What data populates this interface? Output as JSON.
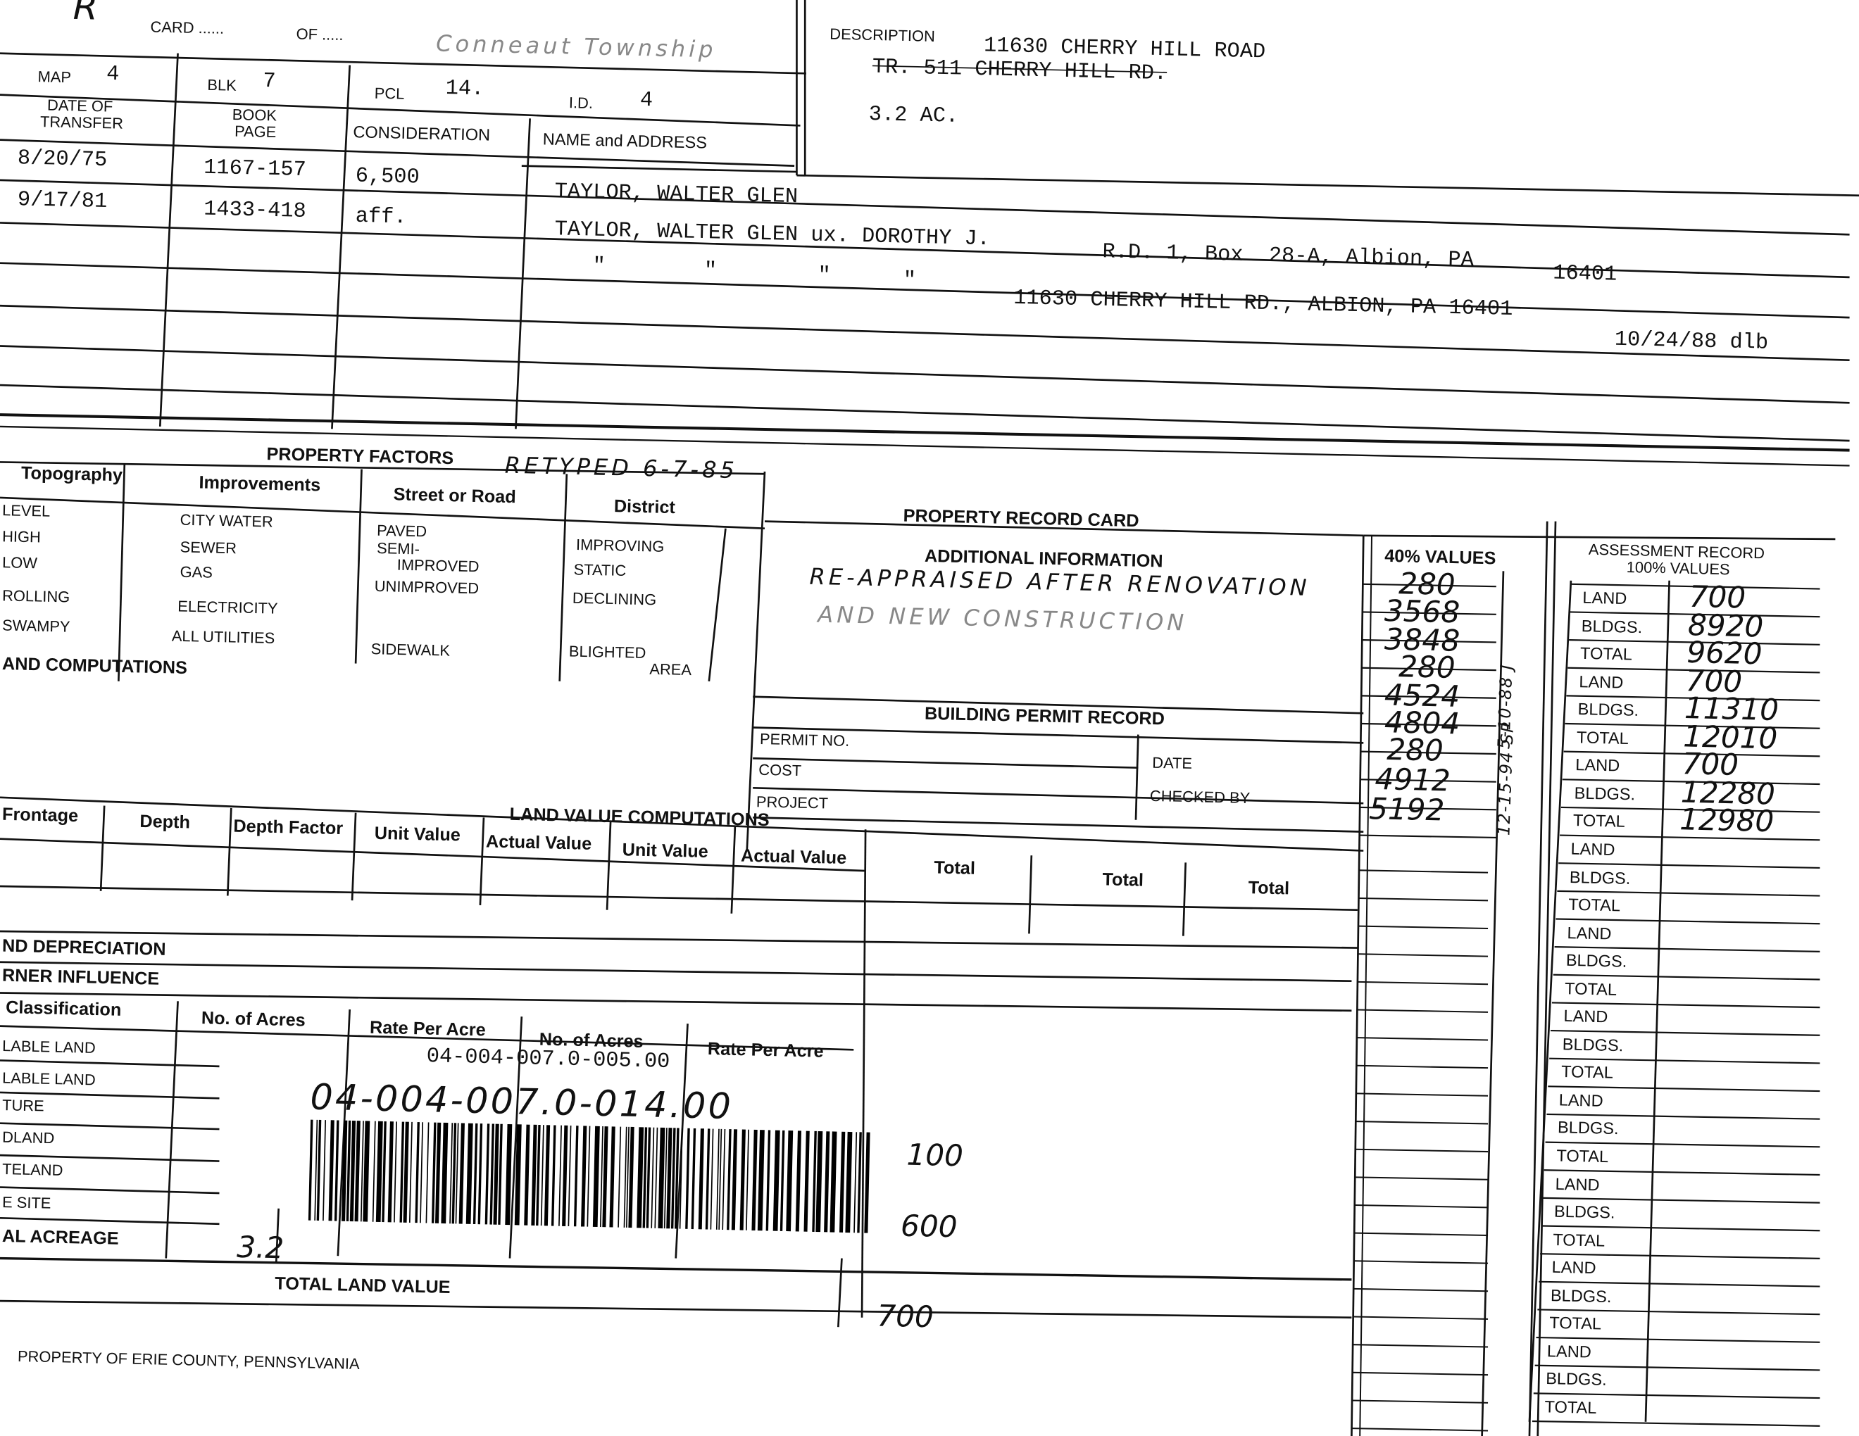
{
  "header": {
    "corner_mark": "R",
    "card_label": "CARD ......",
    "of_label": "OF .....",
    "township": "Conneaut Township",
    "map_label": "MAP",
    "map_value": "4",
    "blk_label": "BLK",
    "blk_value": "7",
    "pcl_label": "PCL",
    "pcl_value": "14.",
    "id_label": "I.D.",
    "id_value": "4"
  },
  "description": {
    "label": "DESCRIPTION",
    "line1": "11630 CHERRY HILL ROAD",
    "line2_struck": "TR. 511 CHERRY HILL RD.",
    "acreage": "3.2 AC."
  },
  "transfers": {
    "headers": {
      "date": [
        "DATE OF",
        "TRANSFER"
      ],
      "book": [
        "BOOK",
        "PAGE"
      ],
      "consideration": "CONSIDERATION",
      "name": "NAME and ADDRESS"
    },
    "rows": [
      {
        "date": "8/20/75",
        "book_page": "1167-157",
        "consideration": "6,500",
        "name": "TAYLOR, WALTER GLEN"
      },
      {
        "date": "9/17/81",
        "book_page": "1433-418",
        "consideration": "aff.",
        "name": "TAYLOR, WALTER GLEN ux. DOROTHY J."
      }
    ],
    "address1": "R.D. 1, Box  28-A, Albion, PA",
    "zip1": "16401",
    "ditto": "\"",
    "address2": "11630 CHERRY HILL RD., ALBION, PA 16401",
    "address2_note": "10/24/88 dlb"
  },
  "property_factors": {
    "title": "PROPERTY FACTORS",
    "retyped_note": "RETYPED 6-7-85",
    "topography": {
      "header": "Topography",
      "items": [
        "LEVEL",
        "HIGH",
        "LOW",
        "ROLLING",
        "SWAMPY"
      ]
    },
    "improvements": {
      "header": "Improvements",
      "items": [
        "CITY WATER",
        "SEWER",
        "GAS",
        "ELECTRICITY",
        "ALL UTILITIES"
      ]
    },
    "street": {
      "header": "Street or Road",
      "items": [
        "PAVED",
        "SEMI-",
        "IMPROVED",
        "UNIMPROVED",
        "SIDEWALK"
      ]
    },
    "district": {
      "header": "District",
      "items": [
        "IMPROVING",
        "STATIC",
        "DECLINING",
        "BLIGHTED",
        "AREA"
      ]
    }
  },
  "land_computations_title": "AND COMPUTATIONS",
  "record_card": {
    "title": "PROPERTY RECORD CARD",
    "additional_info_label": "ADDITIONAL INFORMATION",
    "additional_info_line1": "RE-APPRAISED AFTER RENOVATION",
    "additional_info_line2": "AND NEW CONSTRUCTION",
    "permit": {
      "title": "BUILDING PERMIT RECORD",
      "permit_no": "PERMIT NO.",
      "cost": "COST",
      "project": "PROJECT",
      "date": "DATE",
      "checked_by": "CHECKED BY"
    }
  },
  "values_40": {
    "header": "40% VALUES",
    "values": [
      "280",
      "3568",
      "3848",
      "280",
      "4524",
      "4804",
      "280",
      "4912",
      "5192"
    ],
    "date_notes": [
      "5-10-88 J",
      "12-15-94 SP"
    ]
  },
  "assessment": {
    "header1": "ASSESSMENT RECORD",
    "header2": "100% VALUES",
    "row_labels": [
      "LAND",
      "BLDGS.",
      "TOTAL"
    ],
    "groups": [
      {
        "land": "700",
        "bldgs": "8920",
        "total": "9620"
      },
      {
        "land": "700",
        "bldgs": "11310",
        "total": "12010"
      },
      {
        "land": "700",
        "bldgs": "12280",
        "total": "12980"
      },
      {},
      {},
      {},
      {},
      {},
      {},
      {}
    ]
  },
  "land_value": {
    "title": "LAND VALUE COMPUTATIONS",
    "columns": [
      "Frontage",
      "Depth",
      "Depth Factor",
      "Unit Value",
      "Actual Value",
      "Unit Value",
      "Actual Value"
    ],
    "totals": [
      "Total",
      "Total",
      "Total"
    ],
    "depreciation": "ND DEPRECIATION",
    "corner_influence": "RNER INFLUENCE"
  },
  "classification": {
    "headers": [
      "Classification",
      "No. of Acres",
      "Rate Per Acre",
      "No. of Acres",
      "Rate Per Acre"
    ],
    "rows": [
      "LABLE LAND",
      "LABLE LAND",
      "TURE",
      "DLAND",
      "TELAND",
      "E SITE"
    ],
    "total_acreage_label": "AL ACREAGE",
    "total_acreage_value": "3.2",
    "stamped_parcel": "04-004-007.0-005.00",
    "handwritten_parcel": "04-004-007.0-014.00",
    "value1": "100",
    "value2": "600",
    "total_land_value_label": "TOTAL LAND VALUE",
    "total_land_value": "700"
  },
  "footer": "PROPERTY OF ERIE COUNTY, PENNSYLVANIA"
}
